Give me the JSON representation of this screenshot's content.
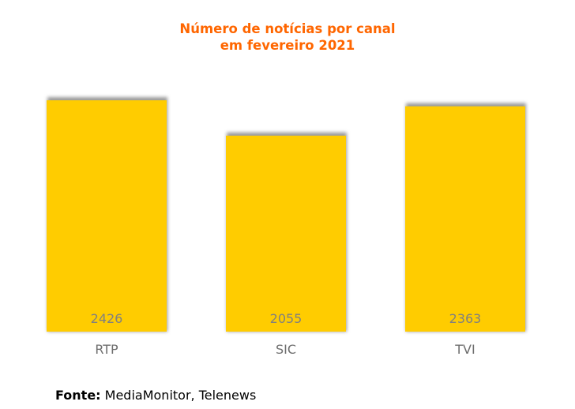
{
  "chart_data": {
    "type": "bar",
    "title_lines": [
      "Número de notícias por canal",
      "em fevereiro 2021"
    ],
    "categories": [
      "RTP",
      "SIC",
      "TVI"
    ],
    "values": [
      2426,
      2055,
      2363
    ],
    "xlabel": "",
    "ylabel": "",
    "ylim": [
      0,
      2426
    ],
    "grid": false,
    "legend": "none",
    "data_labels": [
      "2426",
      "2055",
      "2363"
    ]
  },
  "colors": {
    "title": "#ff6600",
    "bar": "#ffcc00",
    "bar_shadow": "#9a9a9a",
    "data_label": "#808080",
    "tick_label": "#6e6e6e"
  },
  "source": {
    "label": "Fonte:",
    "text": " MediaMonitor, Telenews"
  }
}
